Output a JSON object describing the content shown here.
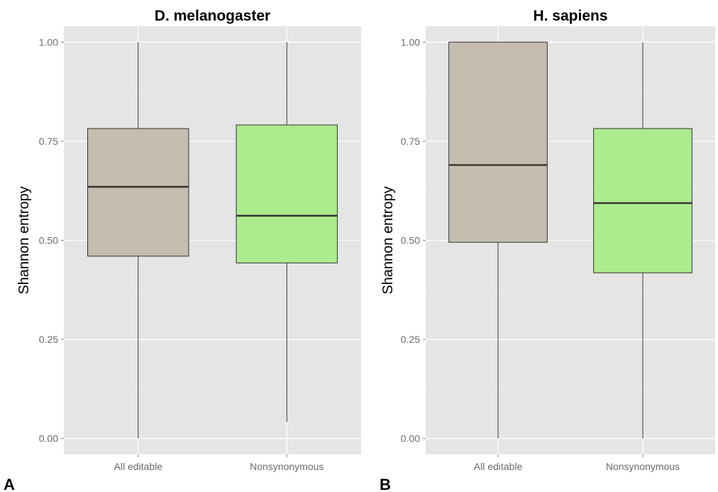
{
  "chart_data": [
    {
      "type": "box",
      "panel_letter": "A",
      "title": "D. melanogaster",
      "xlabel": "",
      "ylabel": "Shannon entropy",
      "ylim": [
        -0.04,
        1.04
      ],
      "yticks": [
        0.0,
        0.25,
        0.5,
        0.75,
        1.0
      ],
      "ytick_labels": [
        "0.00",
        "0.25",
        "0.50",
        "0.75",
        "1.00"
      ],
      "grid": true,
      "categories": [
        "All editable",
        "Nonsynonymous"
      ],
      "boxes": [
        {
          "category": "All editable",
          "whisker_low": 0.0,
          "q1": 0.46,
          "median": 0.635,
          "q3": 0.782,
          "whisker_high": 1.0,
          "fill": "#c4bcad"
        },
        {
          "category": "Nonsynonymous",
          "whisker_low": 0.042,
          "q1": 0.443,
          "median": 0.562,
          "q3": 0.791,
          "whisker_high": 1.0,
          "fill": "#adeb8f"
        }
      ]
    },
    {
      "type": "box",
      "panel_letter": "B",
      "title": "H. sapiens",
      "xlabel": "",
      "ylabel": "Shannon entropy",
      "ylim": [
        -0.04,
        1.04
      ],
      "yticks": [
        0.0,
        0.25,
        0.5,
        0.75,
        1.0
      ],
      "ytick_labels": [
        "0.00",
        "0.25",
        "0.50",
        "0.75",
        "1.00"
      ],
      "grid": true,
      "categories": [
        "All editable",
        "Nonsynonymous"
      ],
      "boxes": [
        {
          "category": "All editable",
          "whisker_low": 0.0,
          "q1": 0.495,
          "median": 0.69,
          "q3": 1.0,
          "whisker_high": 1.0,
          "fill": "#c4bcad"
        },
        {
          "category": "Nonsynonymous",
          "whisker_low": 0.0,
          "q1": 0.418,
          "median": 0.594,
          "q3": 0.782,
          "whisker_high": 1.0,
          "fill": "#adeb8f"
        }
      ]
    }
  ],
  "colors": {
    "panel_background": "#e5e5e5",
    "grid_major": "#ffffff",
    "grid_minor": "#f2f2f2",
    "box_outline": "#333333",
    "median_line": "#333333",
    "tick_text": "#6b6b6b"
  }
}
